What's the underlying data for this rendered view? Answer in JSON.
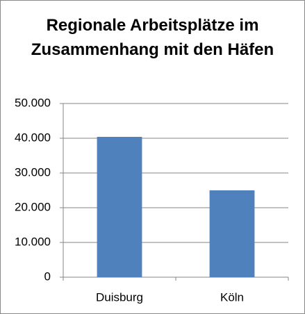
{
  "chart_data": {
    "type": "bar",
    "title": "Regionale Arbeitsplätze im Zusammenhang mit den Häfen",
    "categories": [
      "Duisburg",
      "Köln"
    ],
    "values": [
      40400,
      25000
    ],
    "color": "#4f81bd",
    "ylim": [
      0,
      50000
    ],
    "yticks": [
      0,
      {
        "value": 10000,
        "label": "10.000"
      },
      {
        "value": 20000,
        "label": "20.000"
      },
      {
        "value": 30000,
        "label": "30.000"
      },
      {
        "value": 40000,
        "label": "40.000"
      },
      {
        "value": 50000,
        "label": "50.000"
      }
    ],
    "grid": true
  }
}
